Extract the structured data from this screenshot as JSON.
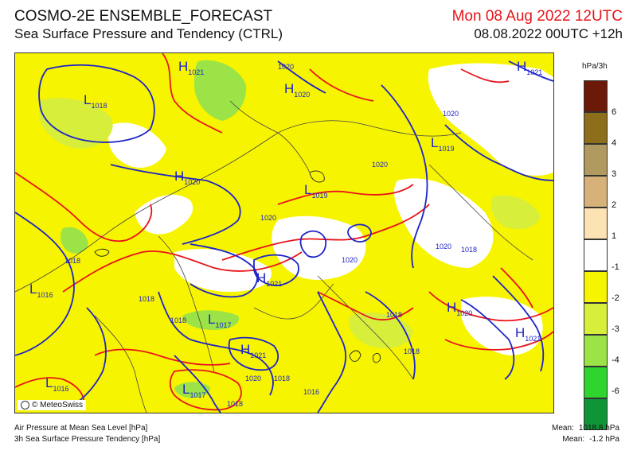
{
  "header": {
    "title": "COSMO-2E ENSEMBLE_FORECAST",
    "subtitle": "Sea Surface Pressure and Tendency (CTRL)",
    "valid_time": "Mon 08 Aug 2022 12UTC",
    "run_time": "08.08.2022 00UTC +12h"
  },
  "legend": {
    "unit": "hPa/3h",
    "entries": [
      {
        "label": "6",
        "color": "#6b1a0a"
      },
      {
        "label": "4",
        "color": "#8c6e1b"
      },
      {
        "label": "3",
        "color": "#b09a5f"
      },
      {
        "label": "2",
        "color": "#d6b27a"
      },
      {
        "label": "1",
        "color": "#fde2b4"
      },
      {
        "label": "-1",
        "color": "#ffffff"
      },
      {
        "label": "-2",
        "color": "#f7f400"
      },
      {
        "label": "-3",
        "color": "#d7ee3b"
      },
      {
        "label": "-4",
        "color": "#9be346"
      },
      {
        "label": "-6",
        "color": "#2fd42f"
      },
      {
        "label": "",
        "color": "#109438"
      }
    ]
  },
  "map_labels": {
    "highs": [
      {
        "letter": "H",
        "value": "1021"
      },
      {
        "letter": "H",
        "value": "1020"
      },
      {
        "letter": "H",
        "value": "1020"
      },
      {
        "letter": "H",
        "value": "1021"
      },
      {
        "letter": "H",
        "value": "1021"
      },
      {
        "letter": "H",
        "value": "1021"
      },
      {
        "letter": "H",
        "value": "1020"
      },
      {
        "letter": "H",
        "value": "1021"
      }
    ],
    "lows": [
      {
        "letter": "L",
        "value": "1018"
      },
      {
        "letter": "L",
        "value": "1019"
      },
      {
        "letter": "L",
        "value": "1019"
      },
      {
        "letter": "L",
        "value": "1016"
      },
      {
        "letter": "L",
        "value": "1017"
      },
      {
        "letter": "L",
        "value": "1016"
      },
      {
        "letter": "L",
        "value": "1017"
      }
    ],
    "isobar_values": [
      "1020",
      "1020",
      "1020",
      "1020",
      "1020",
      "1020",
      "1018",
      "1018",
      "1018",
      "1018",
      "1018",
      "1020",
      "1018",
      "1018",
      "1016",
      "1018"
    ]
  },
  "credit": "© MeteoSwiss",
  "footer": {
    "line1": "Air Pressure at Mean Sea Level [hPa]",
    "line2": "3h Sea Surface Pressure Tendency [hPa]",
    "mean1_label": "Mean:",
    "mean1_value": "1018.8 hPa",
    "mean2_label": "Mean:",
    "mean2_value": "-1.2 hPa"
  },
  "colors": {
    "isobar": "#1d23c8",
    "tendency_line": "#e8141b",
    "background": "#f7f400"
  }
}
